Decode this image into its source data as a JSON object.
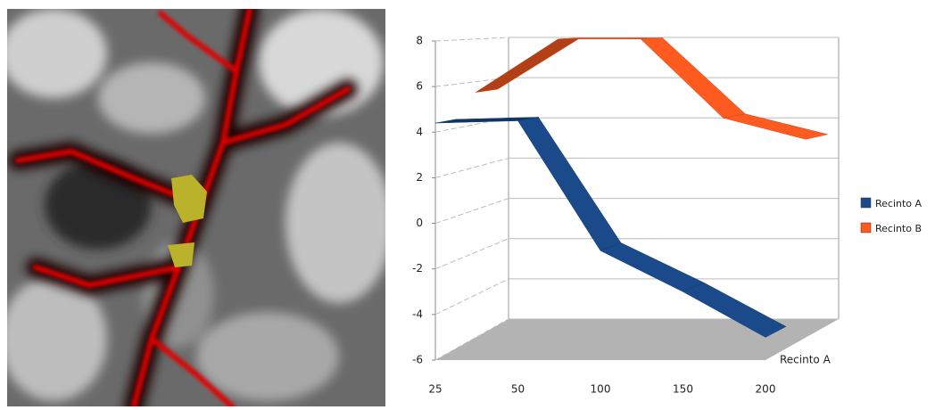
{
  "chart_data": {
    "type": "line3d",
    "categories": [
      "25",
      "50",
      "100",
      "150",
      "200"
    ],
    "series": [
      {
        "name": "Recinto A",
        "color": "#1b4a8a",
        "values": [
          4.4,
          4.5,
          -1.2,
          -3,
          -5
        ]
      },
      {
        "name": "Recinto B",
        "color": "#ff5a1f",
        "values": [
          5.5,
          8,
          8,
          4.3,
          3.3
        ]
      }
    ],
    "depth_category": "Recinto A",
    "ylim": [
      -6,
      8
    ],
    "yticks": [
      -6,
      -4,
      -2,
      0,
      2,
      4,
      6,
      8
    ],
    "grid": true,
    "legend": "right"
  }
}
